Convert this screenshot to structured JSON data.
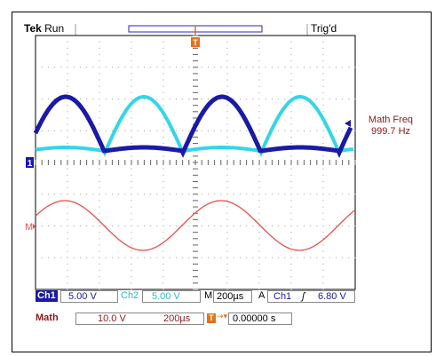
{
  "header": {
    "brand": "Tek",
    "mode": "Run",
    "trigger_status": "Trig'd"
  },
  "markers": {
    "ch1_marker": "1",
    "math_marker": "M",
    "trigger_marker": "T"
  },
  "measurement": {
    "label": "Math Freq",
    "value": "999.7 Hz"
  },
  "status_bar": {
    "ch1_label": "Ch1",
    "ch1_scale": "5.00 V",
    "ch2_label": "Ch2",
    "ch2_scale": "5.00 V",
    "timebase_label": "M",
    "timebase": "200µs",
    "trigger_mode": "A",
    "trigger_source": "Ch1",
    "trigger_slope": "ʃ",
    "trigger_level": "6.80 V",
    "math_label": "Math",
    "math_scale": "10.0 V",
    "math_time": "200µs",
    "position_value": "0.00000 s"
  },
  "colors": {
    "ch1": "#1a1aa6",
    "ch2": "#33d6e8",
    "math": "#e8504a",
    "trigger": "#e8701a",
    "text_dark_red": "#8b1a1a",
    "status_ch1_bg": "#1a1aa6",
    "status_ch2": "#2ab8c8"
  }
}
